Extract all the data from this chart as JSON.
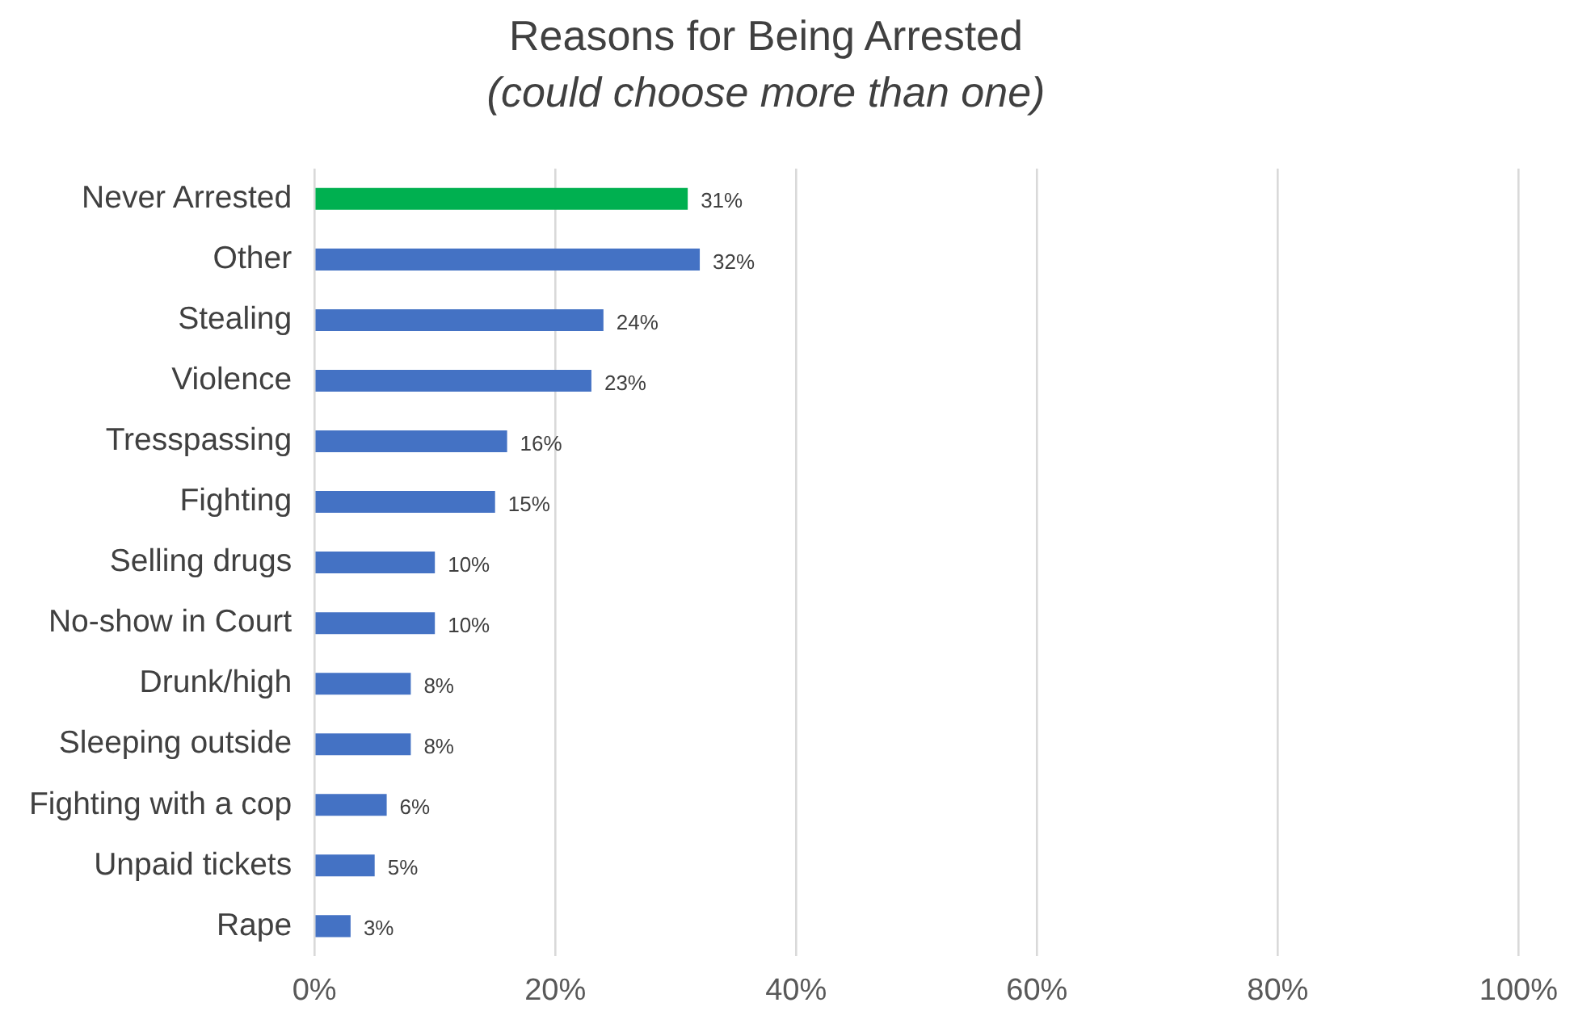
{
  "chart_data": {
    "type": "bar",
    "orientation": "horizontal",
    "title": "Reasons for Being Arrested",
    "subtitle": "(could choose more than one)",
    "categories": [
      "Never Arrested",
      "Other",
      "Stealing",
      "Violence",
      "Tresspassing",
      "Fighting",
      "Selling drugs",
      "No-show in Court",
      "Drunk/high",
      "Sleeping outside",
      "Fighting with a cop",
      "Unpaid tickets",
      "Rape"
    ],
    "values": [
      31,
      32,
      24,
      23,
      16,
      15,
      10,
      10,
      8,
      8,
      6,
      5,
      3
    ],
    "colors": [
      "#00b050",
      "#4472c4",
      "#4472c4",
      "#4472c4",
      "#4472c4",
      "#4472c4",
      "#4472c4",
      "#4472c4",
      "#4472c4",
      "#4472c4",
      "#4472c4",
      "#4472c4",
      "#4472c4"
    ],
    "value_labels": [
      "31%",
      "32%",
      "24%",
      "23%",
      "16%",
      "15%",
      "10%",
      "10%",
      "8%",
      "8%",
      "6%",
      "5%",
      "3%"
    ],
    "xlim": [
      0,
      100
    ],
    "xticks": [
      {
        "value": 0,
        "label": "0%"
      },
      {
        "value": 20,
        "label": "20%"
      },
      {
        "value": 40,
        "label": "40%"
      },
      {
        "value": 60,
        "label": "60%"
      },
      {
        "value": 80,
        "label": "80%"
      },
      {
        "value": 100,
        "label": "100%"
      }
    ],
    "grid": "x"
  }
}
